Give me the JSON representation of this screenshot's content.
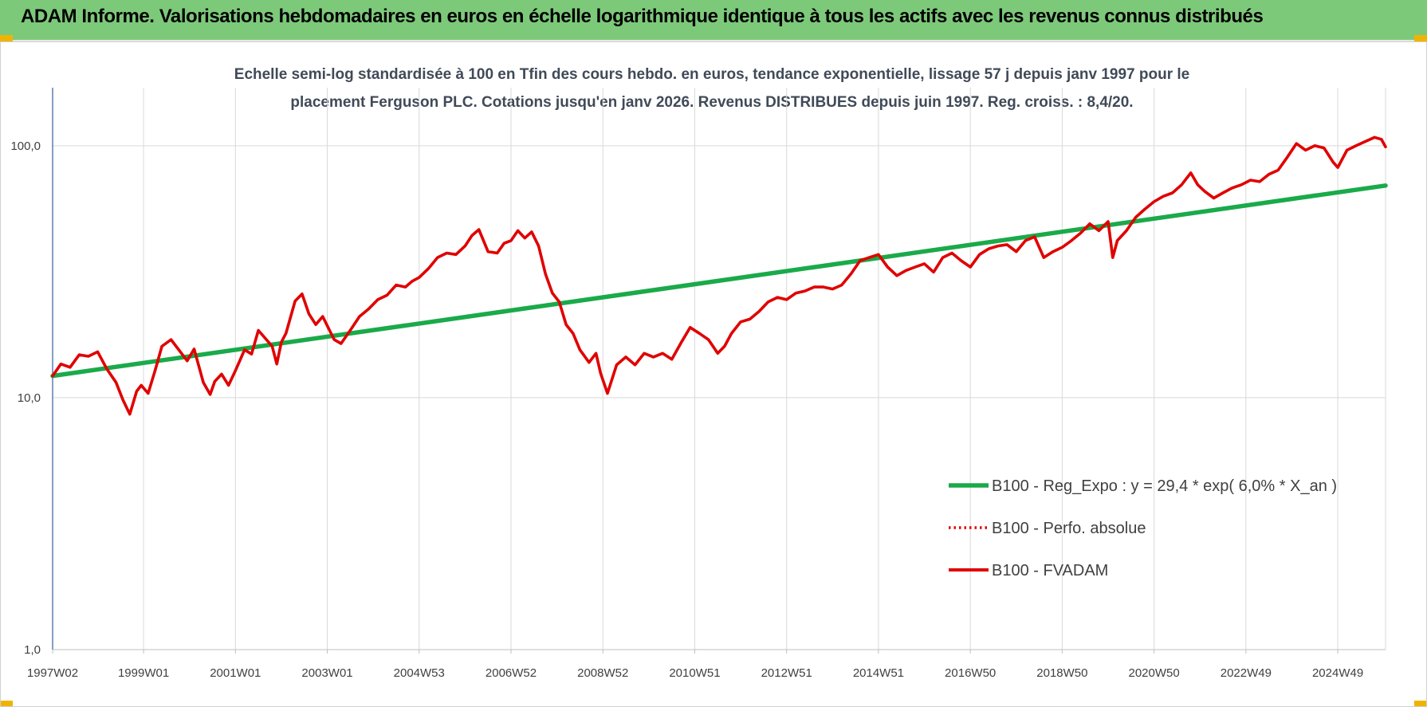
{
  "header": {
    "title": "ADAM Informe. Valorisations hebdomadaires en euros en échelle logarithmique identique à tous les actifs avec les revenus connus distribués",
    "background": "#7dc97a"
  },
  "chart_data": {
    "type": "line",
    "title_lines": [
      "Echelle semi-log standardisée à 100 en Tfin des cours hebdo. en euros, tendance exponentielle, lissage 57 j depuis janv 1997 pour le",
      "placement Ferguson PLC. Cotations jusqu'en janv 2026. Revenus DISTRIBUES depuis juin 1997. Reg. croiss. : 8,4/20."
    ],
    "y_scale": "log",
    "ylim": [
      1,
      170
    ],
    "y_ticks": [
      {
        "value": 1,
        "label": "1,0"
      },
      {
        "value": 10,
        "label": "10,0"
      },
      {
        "value": 100,
        "label": "100,0"
      }
    ],
    "xlim": [
      1997.02,
      2026.04
    ],
    "x_ticks": [
      {
        "value": 1997.02,
        "label": "1997W02"
      },
      {
        "value": 1999.0,
        "label": "1999W01"
      },
      {
        "value": 2001.0,
        "label": "2001W01"
      },
      {
        "value": 2003.0,
        "label": "2003W01"
      },
      {
        "value": 2005.0,
        "label": "2004W53"
      },
      {
        "value": 2007.0,
        "label": "2006W52"
      },
      {
        "value": 2009.0,
        "label": "2008W52"
      },
      {
        "value": 2011.0,
        "label": "2010W51"
      },
      {
        "value": 2013.0,
        "label": "2012W51"
      },
      {
        "value": 2015.0,
        "label": "2014W51"
      },
      {
        "value": 2017.0,
        "label": "2016W50"
      },
      {
        "value": 2019.0,
        "label": "2018W50"
      },
      {
        "value": 2021.0,
        "label": "2020W50"
      },
      {
        "value": 2023.0,
        "label": "2022W49"
      },
      {
        "value": 2025.0,
        "label": "2024W49"
      }
    ],
    "grid": "vertical-major-and-horizontal-decades",
    "legend_position": "bottom-right",
    "series": [
      {
        "name": "B100 - Reg_Expo : y = 29,4 * exp( 6,0% *  X_an )",
        "color": "#1aaa4a",
        "style": "solid",
        "x": [
          1997.02,
          2026.04
        ],
        "y": [
          12.2,
          69.5
        ]
      },
      {
        "name": "B100 - Perfo. absolue",
        "color": "#e00000",
        "style": "dotted",
        "x": [],
        "y": []
      },
      {
        "name": "B100 - FVADAM",
        "color": "#e00000",
        "style": "solid",
        "x": [
          1997.02,
          1997.2,
          1997.4,
          1997.6,
          1997.8,
          1998.0,
          1998.2,
          1998.4,
          1998.55,
          1998.7,
          1998.85,
          1998.95,
          1999.1,
          1999.25,
          1999.4,
          1999.6,
          1999.8,
          1999.95,
          2000.1,
          2000.3,
          2000.45,
          2000.55,
          2000.7,
          2000.85,
          2001.0,
          2001.2,
          2001.35,
          2001.5,
          2001.65,
          2001.8,
          2001.9,
          2002.0,
          2002.1,
          2002.3,
          2002.45,
          2002.6,
          2002.75,
          2002.9,
          2003.05,
          2003.15,
          2003.3,
          2003.5,
          2003.7,
          2003.9,
          2004.1,
          2004.3,
          2004.5,
          2004.7,
          2004.85,
          2005.0,
          2005.2,
          2005.4,
          2005.6,
          2005.8,
          2006.0,
          2006.15,
          2006.3,
          2006.5,
          2006.7,
          2006.85,
          2007.0,
          2007.15,
          2007.3,
          2007.45,
          2007.6,
          2007.75,
          2007.9,
          2008.05,
          2008.2,
          2008.35,
          2008.5,
          2008.7,
          2008.85,
          2008.95,
          2009.1,
          2009.3,
          2009.5,
          2009.7,
          2009.9,
          2010.1,
          2010.3,
          2010.5,
          2010.7,
          2010.9,
          2011.1,
          2011.3,
          2011.5,
          2011.65,
          2011.8,
          2012.0,
          2012.2,
          2012.4,
          2012.6,
          2012.8,
          2013.0,
          2013.2,
          2013.4,
          2013.6,
          2013.8,
          2014.0,
          2014.2,
          2014.4,
          2014.6,
          2014.8,
          2015.0,
          2015.2,
          2015.4,
          2015.6,
          2015.8,
          2016.0,
          2016.2,
          2016.4,
          2016.6,
          2016.8,
          2017.0,
          2017.2,
          2017.4,
          2017.6,
          2017.8,
          2018.0,
          2018.2,
          2018.4,
          2018.6,
          2018.8,
          2019.0,
          2019.2,
          2019.4,
          2019.6,
          2019.8,
          2020.0,
          2020.1,
          2020.2,
          2020.4,
          2020.6,
          2020.8,
          2021.0,
          2021.2,
          2021.4,
          2021.6,
          2021.8,
          2021.95,
          2022.1,
          2022.3,
          2022.5,
          2022.7,
          2022.9,
          2023.1,
          2023.3,
          2023.5,
          2023.7,
          2023.9,
          2024.1,
          2024.3,
          2024.5,
          2024.7,
          2024.9,
          2025.0,
          2025.2,
          2025.4,
          2025.6,
          2025.8,
          2025.95,
          2026.04
        ],
        "y": [
          12.2,
          13.6,
          13.2,
          14.8,
          14.6,
          15.2,
          13.0,
          11.5,
          9.8,
          8.6,
          10.6,
          11.2,
          10.4,
          12.8,
          16.0,
          17.0,
          15.2,
          14.0,
          15.6,
          11.5,
          10.3,
          11.6,
          12.4,
          11.2,
          12.8,
          15.5,
          14.9,
          18.5,
          17.2,
          16.0,
          13.6,
          16.6,
          18.0,
          24.2,
          25.8,
          21.5,
          19.5,
          21.0,
          18.5,
          17.0,
          16.4,
          18.5,
          21.0,
          22.5,
          24.5,
          25.5,
          28.0,
          27.5,
          29.0,
          30.0,
          32.5,
          36.0,
          37.5,
          37.0,
          40.0,
          44.0,
          46.5,
          38.0,
          37.5,
          41.0,
          42.0,
          46.0,
          43.0,
          45.5,
          40.0,
          31.0,
          26.0,
          24.0,
          19.5,
          18.0,
          15.5,
          13.8,
          15.0,
          12.5,
          10.4,
          13.5,
          14.5,
          13.5,
          15.0,
          14.5,
          15.0,
          14.2,
          16.5,
          19.0,
          18.0,
          17.0,
          15.0,
          16.0,
          18.0,
          20.0,
          20.5,
          22.0,
          24.0,
          25.0,
          24.5,
          26.0,
          26.5,
          27.5,
          27.5,
          27.0,
          28.0,
          31.0,
          35.0,
          36.0,
          37.0,
          33.0,
          30.5,
          32.0,
          33.0,
          34.0,
          31.5,
          36.0,
          37.5,
          35.0,
          33.0,
          37.0,
          39.0,
          40.0,
          40.5,
          38.0,
          42.0,
          43.5,
          36.0,
          38.0,
          39.5,
          42.0,
          45.0,
          49.0,
          46.0,
          50.0,
          36.0,
          42.0,
          46.0,
          52.0,
          56.0,
          60.0,
          63.0,
          65.0,
          70.0,
          78.0,
          70.0,
          66.0,
          62.0,
          65.0,
          68.0,
          70.0,
          73.0,
          72.0,
          77.0,
          80.0,
          90.0,
          102.0,
          96.0,
          100.0,
          98.0,
          86.0,
          82.0,
          96.0,
          100.0,
          104.0,
          108.0,
          106.0,
          99.0
        ]
      }
    ]
  }
}
